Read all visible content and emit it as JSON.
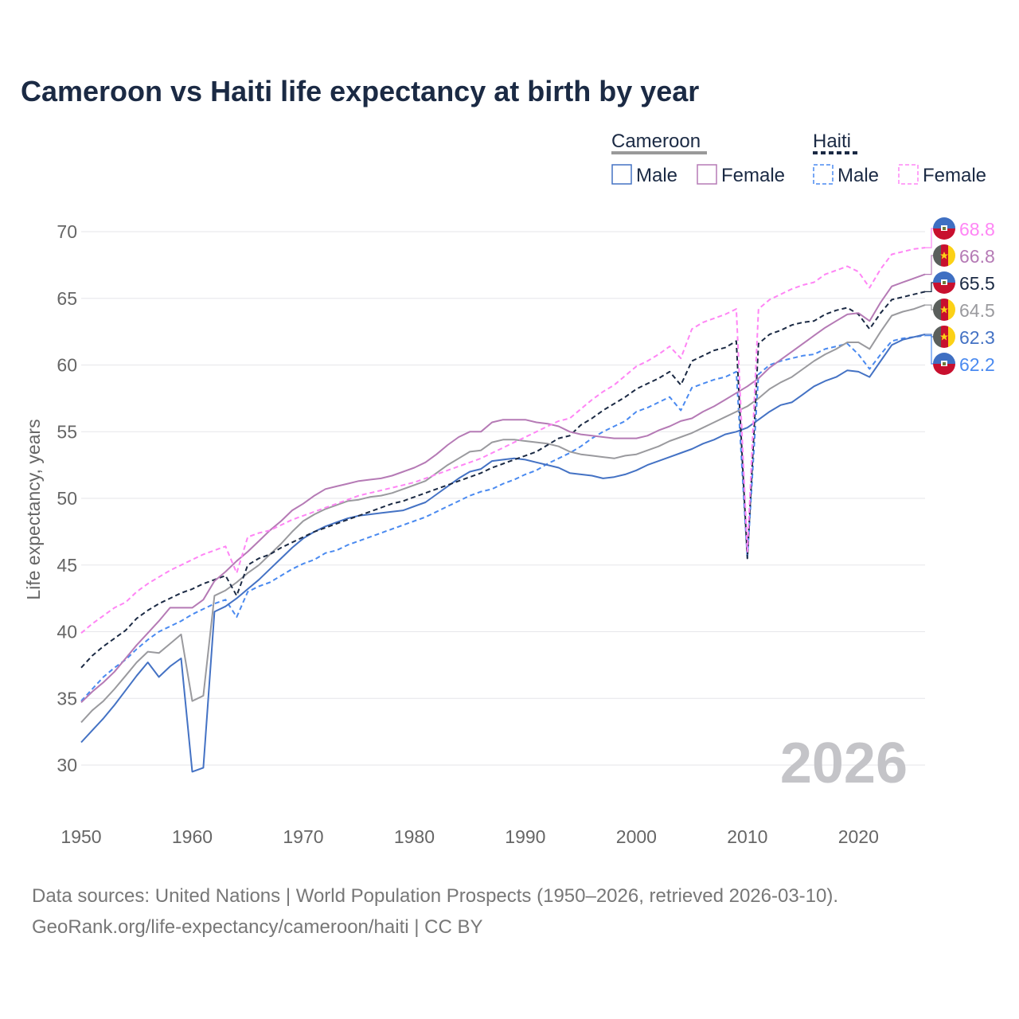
{
  "chart_data": {
    "type": "line",
    "title": "Cameroon vs Haiti life expectancy at birth by year",
    "xlabel": "",
    "ylabel": "Life expectancy, years",
    "xlim": [
      1950,
      2026
    ],
    "ylim": [
      27,
      70
    ],
    "xticks": [
      1950,
      1960,
      1970,
      1980,
      1990,
      2000,
      2010,
      2020
    ],
    "yticks": [
      30,
      35,
      40,
      45,
      50,
      55,
      60,
      65,
      70
    ],
    "grid": true,
    "year_watermark": "2026",
    "legend": {
      "placement": "top-right",
      "groups": [
        {
          "name": "Cameroon",
          "items": [
            "Male",
            "Female"
          ]
        },
        {
          "name": "Haiti",
          "items": [
            "Male",
            "Female"
          ]
        }
      ]
    },
    "x_start": 1950,
    "series": [
      {
        "name": "Haiti Female",
        "country": "Haiti",
        "sex": "Female",
        "color": "#ff85f5",
        "dashed": true,
        "flag": "haiti",
        "end_label": "68.8",
        "values": [
          39.9,
          40.6,
          41.2,
          41.8,
          42.2,
          43.0,
          43.6,
          44.1,
          44.6,
          45.0,
          45.4,
          45.8,
          46.1,
          46.4,
          44.4,
          47.1,
          47.4,
          47.6,
          48.0,
          48.4,
          48.7,
          49.0,
          49.3,
          49.6,
          49.9,
          50.2,
          50.4,
          50.6,
          50.8,
          51.0,
          51.2,
          51.5,
          51.8,
          52.1,
          52.4,
          52.7,
          53.0,
          53.4,
          53.8,
          54.2,
          54.6,
          55.0,
          55.4,
          55.8,
          56.0,
          56.7,
          57.4,
          58.0,
          58.5,
          59.2,
          59.9,
          60.3,
          60.8,
          61.4,
          60.5,
          62.7,
          63.2,
          63.5,
          63.8,
          64.2,
          46.0,
          64.2,
          64.9,
          65.3,
          65.7,
          66.0,
          66.2,
          66.8,
          67.1,
          67.4,
          67.0,
          65.8,
          67.2,
          68.3,
          68.5,
          68.7,
          68.8
        ]
      },
      {
        "name": "Cameroon Female",
        "country": "Cameroon",
        "sex": "Female",
        "color": "#b57ab5",
        "dashed": false,
        "flag": "cameroon",
        "end_label": "66.8",
        "values": [
          34.7,
          35.5,
          36.2,
          37.0,
          38.0,
          39.0,
          39.9,
          40.8,
          41.8,
          41.8,
          41.8,
          42.4,
          43.8,
          44.5,
          45.3,
          46.0,
          46.8,
          47.6,
          48.3,
          49.1,
          49.6,
          50.2,
          50.7,
          50.9,
          51.1,
          51.3,
          51.4,
          51.5,
          51.7,
          52.0,
          52.3,
          52.7,
          53.3,
          54.0,
          54.6,
          55.0,
          55.0,
          55.7,
          55.9,
          55.9,
          55.9,
          55.7,
          55.6,
          55.4,
          55.0,
          54.8,
          54.7,
          54.6,
          54.5,
          54.5,
          54.5,
          54.7,
          55.1,
          55.4,
          55.8,
          56.0,
          56.5,
          56.9,
          57.4,
          57.9,
          58.4,
          59.0,
          59.8,
          60.4,
          61.0,
          61.6,
          62.2,
          62.8,
          63.3,
          63.8,
          63.9,
          63.3,
          64.7,
          65.9,
          66.2,
          66.5,
          66.8
        ]
      },
      {
        "name": "Haiti",
        "country": "Haiti",
        "sex": "Both",
        "color": "#1b2a44",
        "dashed": true,
        "flag": "haiti",
        "end_label": "65.5",
        "values": [
          37.3,
          38.2,
          38.9,
          39.5,
          40.1,
          41.0,
          41.6,
          42.1,
          42.5,
          42.9,
          43.2,
          43.6,
          43.9,
          44.2,
          42.7,
          45.0,
          45.5,
          45.8,
          46.3,
          46.7,
          47.1,
          47.5,
          47.8,
          48.1,
          48.4,
          48.7,
          49.0,
          49.3,
          49.6,
          49.8,
          50.1,
          50.4,
          50.7,
          51.0,
          51.3,
          51.6,
          51.9,
          52.3,
          52.6,
          52.9,
          53.2,
          53.5,
          54.0,
          54.5,
          54.7,
          55.5,
          56.0,
          56.6,
          57.1,
          57.6,
          58.2,
          58.6,
          59.0,
          59.5,
          58.5,
          60.3,
          60.7,
          61.1,
          61.3,
          61.8,
          45.5,
          61.6,
          62.3,
          62.6,
          63.0,
          63.2,
          63.3,
          63.8,
          64.1,
          64.3,
          63.8,
          62.7,
          63.9,
          64.9,
          65.1,
          65.3,
          65.5
        ]
      },
      {
        "name": "Cameroon",
        "country": "Cameroon",
        "sex": "Both",
        "color": "#9a9a9e",
        "dashed": false,
        "flag": "cameroon",
        "end_label": "64.5",
        "values": [
          33.2,
          34.1,
          34.8,
          35.7,
          36.7,
          37.7,
          38.5,
          38.4,
          39.1,
          39.8,
          34.8,
          35.2,
          42.7,
          43.1,
          43.7,
          44.4,
          45.0,
          45.8,
          46.6,
          47.5,
          48.3,
          48.8,
          49.2,
          49.5,
          49.8,
          49.9,
          50.1,
          50.2,
          50.4,
          50.7,
          51.0,
          51.3,
          51.9,
          52.5,
          53.0,
          53.5,
          53.6,
          54.2,
          54.4,
          54.4,
          54.3,
          54.2,
          54.1,
          53.9,
          53.5,
          53.3,
          53.2,
          53.1,
          53.0,
          53.2,
          53.3,
          53.6,
          53.9,
          54.3,
          54.6,
          54.9,
          55.3,
          55.7,
          56.1,
          56.5,
          56.9,
          57.5,
          58.2,
          58.7,
          59.1,
          59.7,
          60.3,
          60.8,
          61.2,
          61.7,
          61.7,
          61.2,
          62.5,
          63.7,
          64.0,
          64.2,
          64.5
        ]
      },
      {
        "name": "Cameroon Male",
        "country": "Cameroon",
        "sex": "Male",
        "color": "#4472c4",
        "dashed": false,
        "flag": "cameroon",
        "end_label": "62.3",
        "values": [
          31.7,
          32.6,
          33.5,
          34.5,
          35.6,
          36.7,
          37.7,
          36.6,
          37.4,
          38.0,
          29.5,
          29.8,
          41.5,
          41.9,
          42.5,
          43.2,
          43.9,
          44.7,
          45.5,
          46.3,
          47.0,
          47.5,
          47.9,
          48.2,
          48.5,
          48.7,
          48.8,
          48.9,
          49.0,
          49.1,
          49.4,
          49.7,
          50.3,
          50.9,
          51.5,
          52.0,
          52.2,
          52.8,
          52.9,
          53.0,
          52.9,
          52.7,
          52.5,
          52.3,
          51.9,
          51.8,
          51.7,
          51.5,
          51.6,
          51.8,
          52.1,
          52.5,
          52.8,
          53.1,
          53.4,
          53.7,
          54.1,
          54.4,
          54.8,
          55.0,
          55.3,
          55.9,
          56.5,
          57.0,
          57.2,
          57.8,
          58.4,
          58.8,
          59.1,
          59.6,
          59.5,
          59.1,
          60.3,
          61.5,
          61.9,
          62.1,
          62.3
        ]
      },
      {
        "name": "Haiti Male",
        "country": "Haiti",
        "sex": "Male",
        "color": "#4a8af0",
        "dashed": true,
        "flag": "haiti",
        "end_label": "62.2",
        "values": [
          34.8,
          35.7,
          36.6,
          37.3,
          37.9,
          38.7,
          39.4,
          40.0,
          40.4,
          40.8,
          41.3,
          41.7,
          42.1,
          42.4,
          41.1,
          43.0,
          43.4,
          43.7,
          44.2,
          44.7,
          45.1,
          45.4,
          45.9,
          46.1,
          46.5,
          46.8,
          47.1,
          47.4,
          47.7,
          48.0,
          48.3,
          48.6,
          49.0,
          49.4,
          49.8,
          50.2,
          50.5,
          50.7,
          51.1,
          51.4,
          51.8,
          52.1,
          52.6,
          53.0,
          53.4,
          53.9,
          54.5,
          55.0,
          55.4,
          55.8,
          56.5,
          56.8,
          57.2,
          57.6,
          56.6,
          58.3,
          58.6,
          58.9,
          59.1,
          59.5,
          45.5,
          59.3,
          60.0,
          60.3,
          60.5,
          60.7,
          60.8,
          61.2,
          61.4,
          61.6,
          60.8,
          59.7,
          60.8,
          61.8,
          62.0,
          62.1,
          62.2
        ]
      }
    ]
  },
  "source": {
    "line1": "Data sources: United Nations | World Population Prospects (1950–2026, retrieved 2026-03-10).",
    "line2": "GeoRank.org/life-expectancy/cameroon/haiti | CC BY"
  }
}
